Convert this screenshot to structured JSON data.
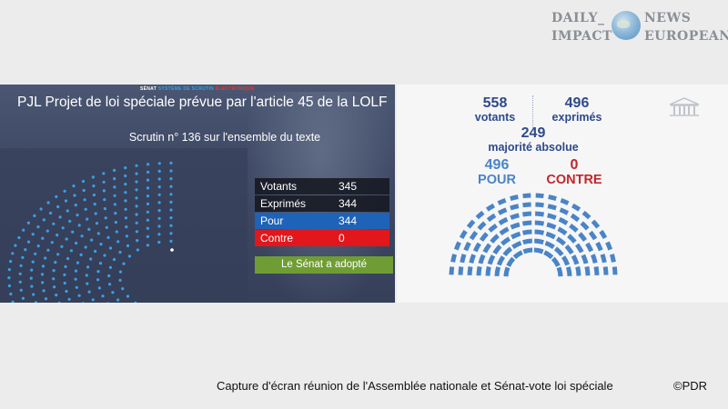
{
  "logo": {
    "daily": "DAILY_",
    "impact": "IMPACT",
    "news": "NEWS",
    "european": "EUROPEAN"
  },
  "senate": {
    "header_left": "SÉNAT",
    "header_mid": "SYSTÈME DE SCRUTIN",
    "header_right": "ÉLECTRONIQUE",
    "title": "PJL Projet de loi spéciale prévue par l'article 45 de la LOLF",
    "scrutin": "Scrutin n° 136 sur l'ensemble du texte",
    "tally": [
      {
        "label": "Votants",
        "value": "345"
      },
      {
        "label": "Exprimés",
        "value": "344"
      },
      {
        "label": "Pour",
        "value": "344"
      },
      {
        "label": "Contre",
        "value": "0"
      }
    ],
    "result": "Le Sénat a adopté"
  },
  "assembly": {
    "votants_n": "558",
    "votants_l": "votants",
    "exprimes_n": "496",
    "exprimes_l": "exprimés",
    "majorite_n": "249",
    "majorite_l": "majorité absolue",
    "pour_n": "496",
    "pour_l": "POUR",
    "contre_n": "0",
    "contre_l": "CONTRE"
  },
  "caption": "Capture d'écran réunion de l'Assemblée nationale et Sénat-vote loi spéciale",
  "credit": "©PDR",
  "colors": {
    "senate_bg": "#3e4864",
    "pour": "#1e63b7",
    "contre": "#e2171b",
    "adopt": "#6f9d33",
    "an_blue": "#2d4a8a"
  }
}
